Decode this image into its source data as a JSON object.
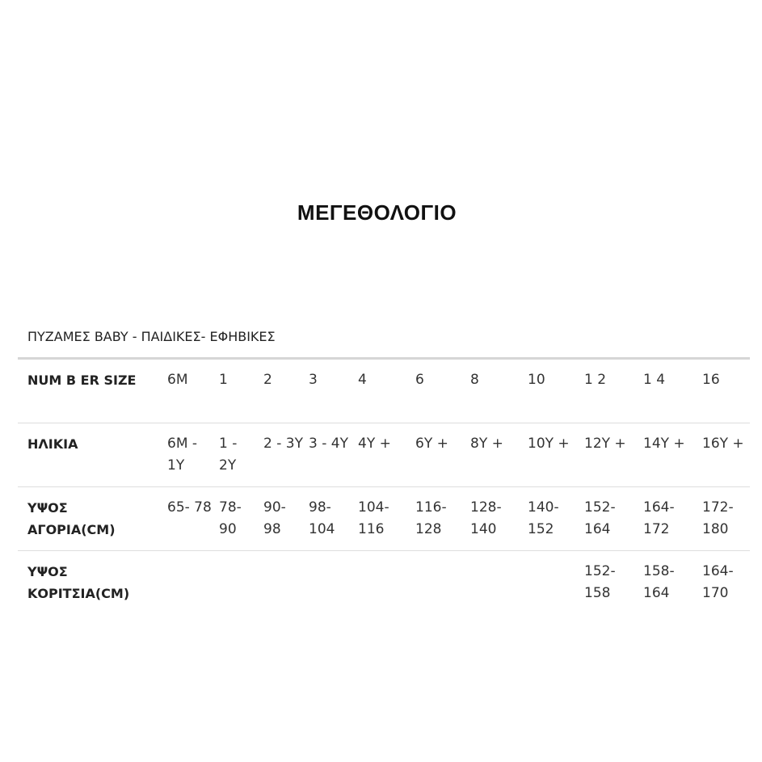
{
  "title": "ΜΕΓΕΘΟΛΟΓΙΟ",
  "subtitle": "ΠΥΖΑΜΕΣ BABY - ΠΑΙΔΙΚΕΣ- ΕΦΗΒΙΚΕΣ",
  "table": {
    "rows": [
      {
        "label": "NUM B ER SIZE",
        "cells": [
          "6M",
          "1",
          "2",
          "3",
          "4",
          "6",
          "8",
          "10",
          "1 2",
          "1 4",
          "16"
        ]
      },
      {
        "label": "ΗΛΙΚΙΑ",
        "cells": [
          "6M - 1Y",
          "1 - 2Y",
          "2 - 3Y",
          "3 - 4Y",
          "4Y +",
          "6Y +",
          "8Y +",
          "10Y +",
          "12Y +",
          "14Y +",
          "16Y +"
        ]
      },
      {
        "label": "ΥΨΟΣ ΑΓΟΡΙΑ(CM)",
        "cells": [
          "65- 78",
          "78- 90",
          "90- 98",
          "98- 104",
          "104- 116",
          "116- 128",
          "128- 140",
          "140- 152",
          "152- 164",
          "164- 172",
          "172- 180"
        ]
      },
      {
        "label": "ΥΨΟΣ ΚΟΡΙΤΣΙΑ(CM)",
        "cells": [
          "",
          "",
          "",
          "",
          "",
          "",
          "",
          "",
          "152- 158",
          "158- 164",
          "164- 170"
        ]
      }
    ]
  }
}
